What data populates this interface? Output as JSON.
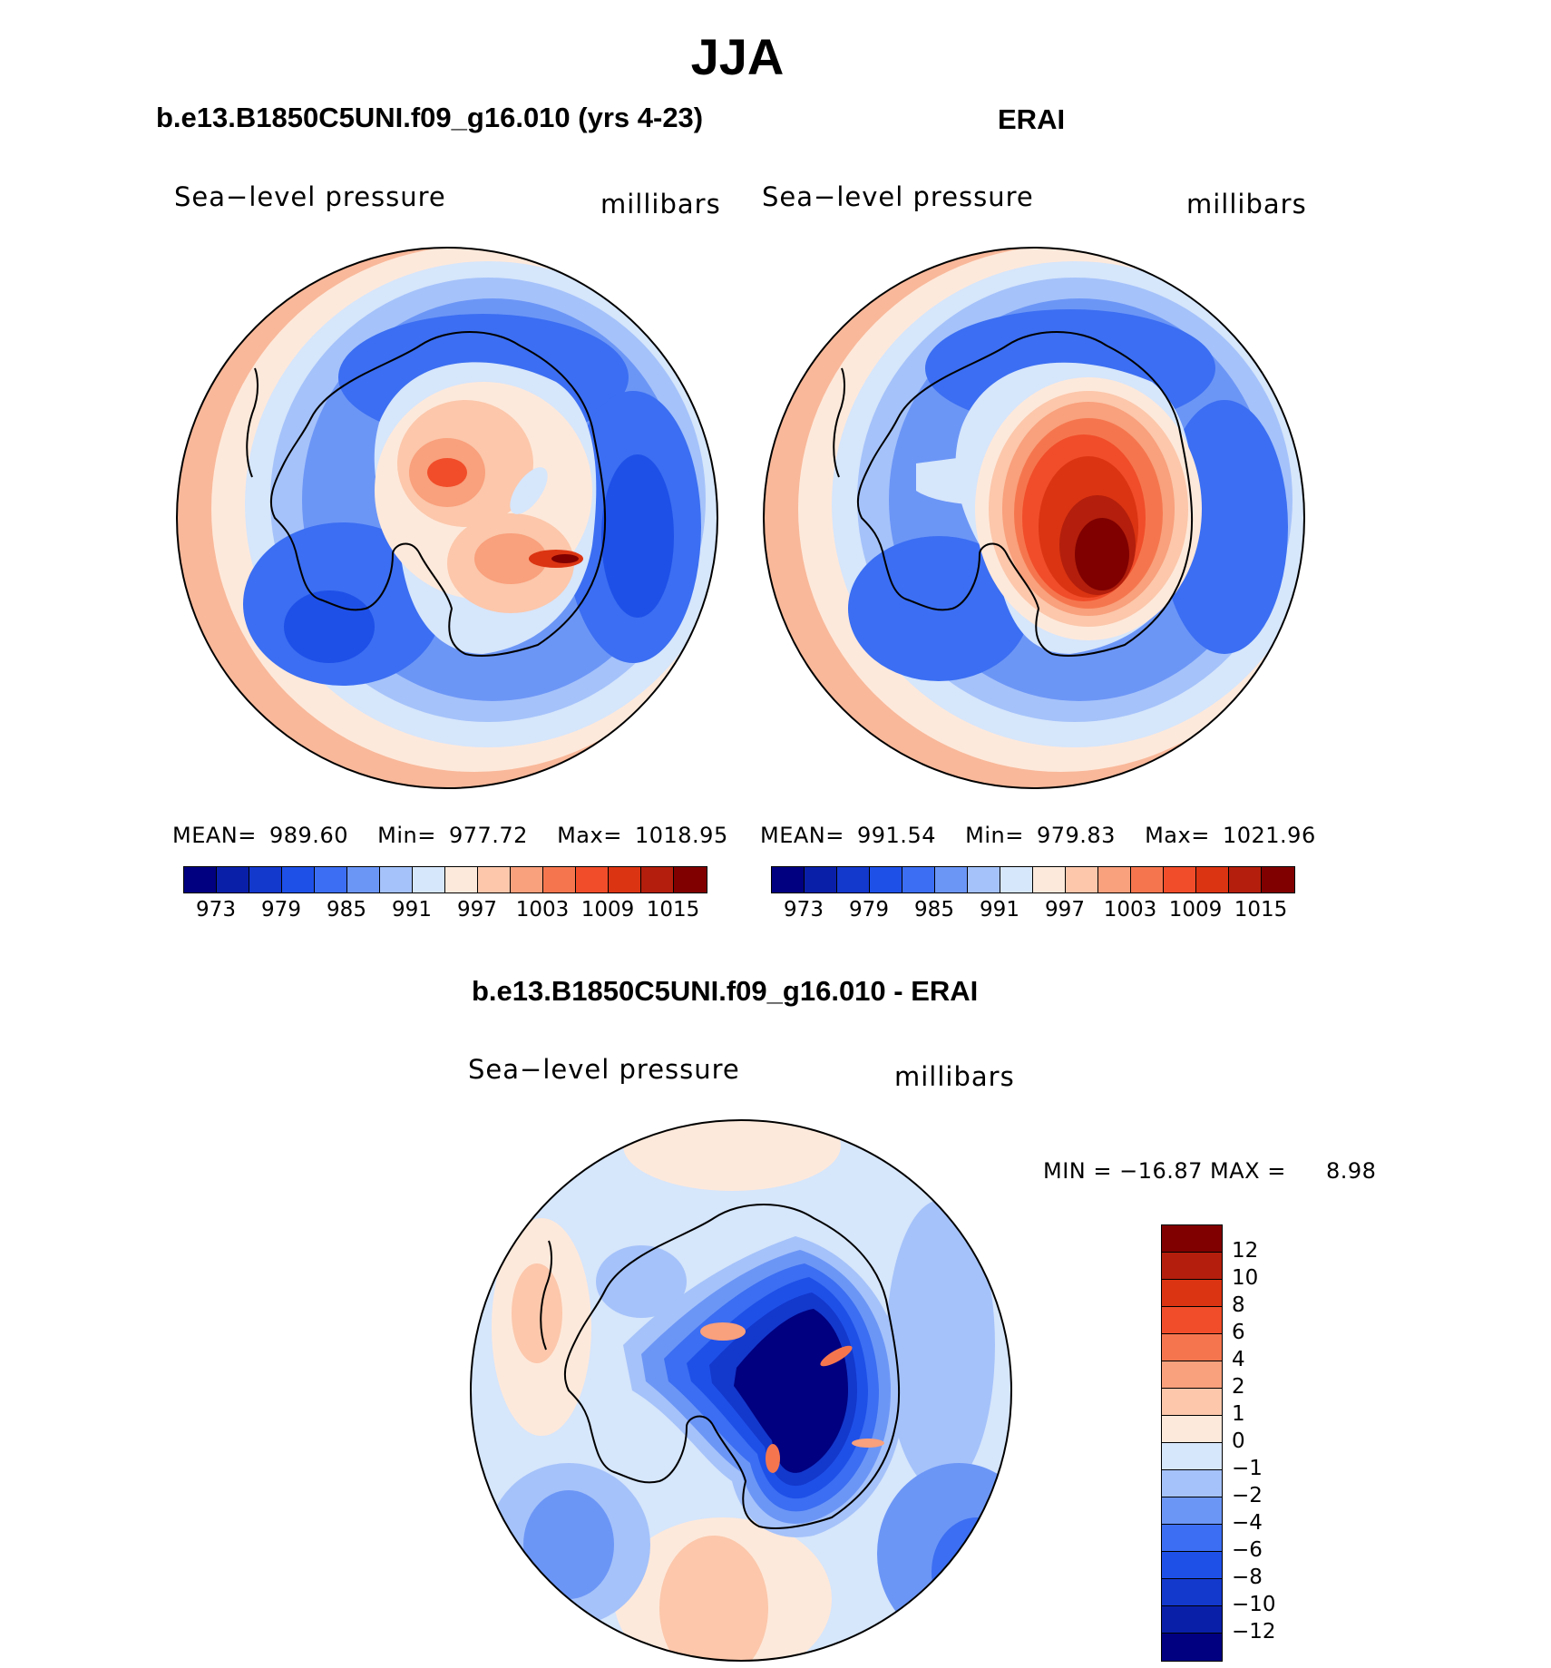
{
  "title": "JJA",
  "panels": [
    {
      "title": "b.e13.B1850C5UNI.f09_g16.010 (yrs 4-23)",
      "variable": "Sea−level pressure",
      "units": "millibars",
      "stats": {
        "mean_label": "MEAN=",
        "mean": "989.60",
        "min_label": "Min=",
        "min": "977.72",
        "max_label": "Max=",
        "max": "1018.95"
      }
    },
    {
      "title": "ERAI",
      "variable": "Sea−level pressure",
      "units": "millibars",
      "stats": {
        "mean_label": "MEAN=",
        "mean": "991.54",
        "min_label": "Min=",
        "min": "979.83",
        "max_label": "Max=",
        "max": "1021.96"
      }
    },
    {
      "title": "b.e13.B1850C5UNI.f09_g16.010 - ERAI",
      "variable": "Sea−level pressure",
      "units": "millibars",
      "stats": {
        "text": "MIN = −16.87 MAX =",
        "max": "8.98"
      }
    }
  ],
  "abs_colorbar": {
    "colors": [
      "#000080",
      "#0a1fa8",
      "#1338cc",
      "#1e50e8",
      "#3b6ef2",
      "#6c96f6",
      "#a5c2fa",
      "#d6e6fb",
      "#fde9db",
      "#fcc7ab",
      "#f9a07c",
      "#f5764e",
      "#f14d2a",
      "#db3412",
      "#b31f0c",
      "#800000"
    ],
    "tick_labels": [
      "973",
      "979",
      "985",
      "991",
      "997",
      "1003",
      "1009",
      "1015"
    ]
  },
  "diff_colorbar": {
    "colors": [
      "#000080",
      "#0a1fa8",
      "#1338cc",
      "#1e50e8",
      "#3b6ef2",
      "#6c96f6",
      "#a5c2fa",
      "#d6e6fb",
      "#fde9db",
      "#fcc7ab",
      "#f9a07c",
      "#f5764e",
      "#f14d2a",
      "#db3412",
      "#b31f0c",
      "#800000"
    ],
    "tick_labels": [
      "12",
      "10",
      "8",
      "6",
      "4",
      "2",
      "1",
      "0",
      "−1",
      "−2",
      "−4",
      "−6",
      "−8",
      "−10",
      "−12"
    ]
  }
}
